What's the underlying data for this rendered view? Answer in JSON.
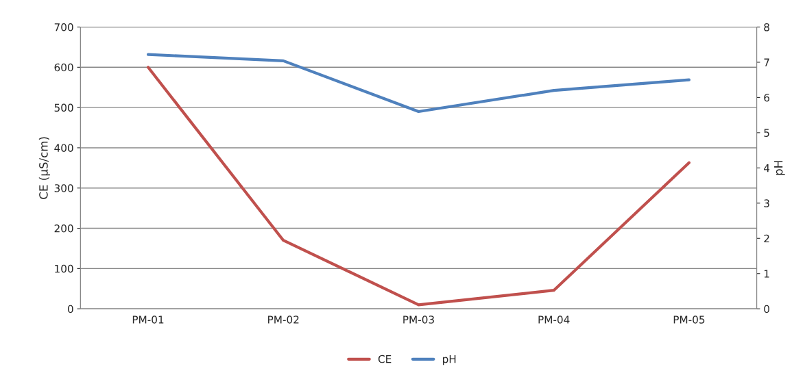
{
  "chart_data": {
    "type": "line",
    "categories": [
      "PM-01",
      "PM-02",
      "PM-03",
      "PM-04",
      "PM-05"
    ],
    "ylabel": "CE (µS/cm)",
    "y2label": "pH",
    "ylim": [
      0,
      700
    ],
    "yticks": [
      0,
      100,
      200,
      300,
      400,
      500,
      600,
      700
    ],
    "y2lim": [
      0,
      8
    ],
    "y2ticks": [
      0,
      1,
      2,
      3,
      4,
      5,
      6,
      7,
      8
    ],
    "grid": "y",
    "legend": "bottom",
    "marker": "none",
    "line_style": "solid",
    "series": [
      {
        "name": "CE",
        "color": "#c0504d",
        "values": [
          600,
          170,
          10,
          46,
          363
        ]
      },
      {
        "name": "pH",
        "color": "#4f81bd",
        "axis": "y2",
        "values": [
          7.22,
          7.04,
          5.6,
          6.2,
          6.5
        ]
      }
    ]
  }
}
